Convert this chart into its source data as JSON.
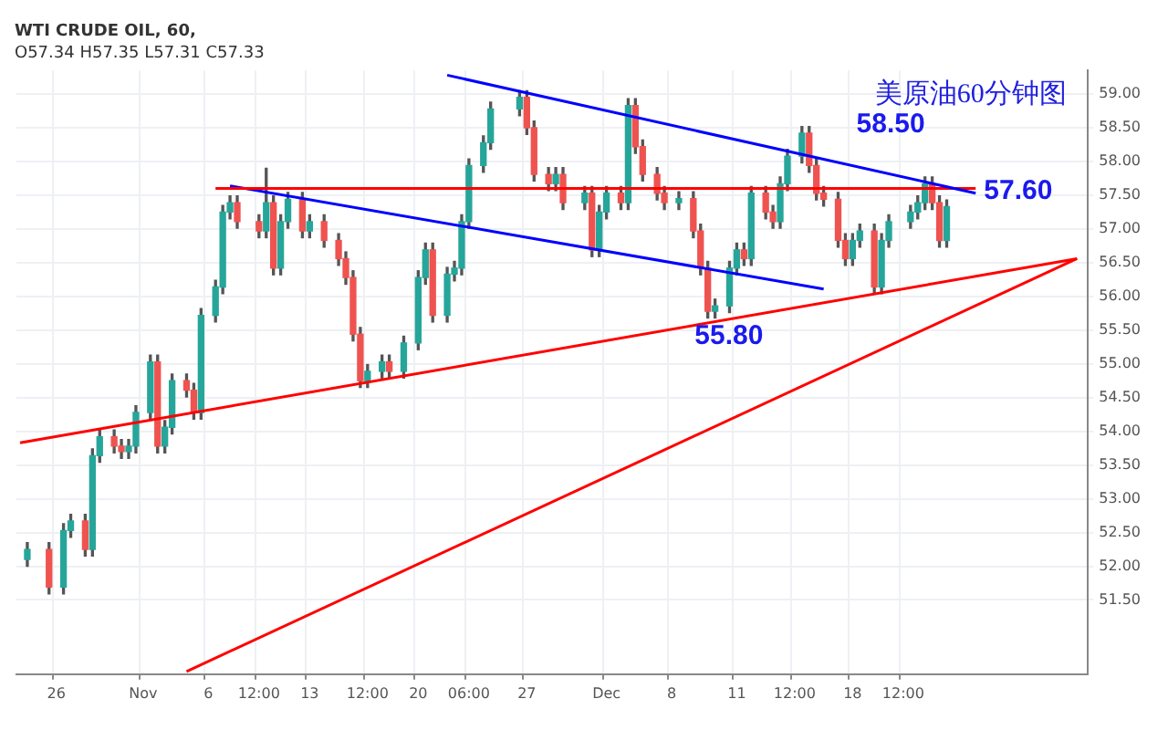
{
  "chart_data": {
    "type": "candlestick",
    "title": "WTI CRUDE OIL, 60,",
    "subtitle": "O57.34 H57.35 L57.31 C57.33",
    "categories": [
      null,
      null,
      null,
      null,
      null,
      "26",
      null,
      null,
      null,
      null,
      null,
      null,
      null,
      null,
      null,
      null,
      null,
      "Nov",
      null,
      null,
      null,
      null,
      null,
      null,
      null,
      null,
      "6",
      null,
      null,
      null,
      null,
      null,
      null,
      "12:00",
      null,
      null,
      null,
      null,
      null,
      null,
      "13",
      null,
      null,
      null,
      null,
      null,
      null,
      null,
      "12:00",
      null,
      null,
      null,
      null,
      null,
      null,
      "20",
      null,
      null,
      null,
      null,
      null,
      null,
      "06:00",
      null,
      null,
      null,
      null,
      null,
      null,
      null,
      "27",
      null,
      null,
      null,
      null,
      null,
      null,
      null,
      null,
      null,
      null,
      "Dec",
      null,
      null,
      null,
      null,
      null,
      null,
      null,
      null,
      "8",
      null,
      null,
      null,
      null,
      null,
      null,
      null,
      null,
      "11",
      null,
      null,
      null,
      null,
      null,
      null,
      null,
      "12:00",
      null,
      null,
      null,
      null,
      null,
      null,
      null,
      "18",
      null,
      null,
      null,
      null,
      null,
      null,
      "12:00",
      null,
      null,
      null,
      null,
      null,
      null,
      null,
      null,
      null,
      null,
      null,
      null,
      null,
      null,
      null,
      null,
      null,
      null,
      null,
      null,
      null,
      null,
      null,
      null,
      null
    ],
    "ohlc": [
      null,
      [
        52.1,
        52.35,
        52.0,
        52.25
      ],
      null,
      null,
      [
        52.25,
        52.35,
        51.59,
        51.69
      ],
      null,
      [
        51.69,
        52.63,
        51.59,
        52.53
      ],
      [
        52.53,
        52.77,
        52.43,
        52.67
      ],
      null,
      [
        52.67,
        52.77,
        52.15,
        52.25
      ],
      [
        52.25,
        53.74,
        52.15,
        53.64
      ],
      [
        53.64,
        54.02,
        53.54,
        53.92
      ],
      null,
      [
        53.92,
        54.02,
        53.68,
        53.78
      ],
      [
        53.78,
        53.88,
        53.6,
        53.7
      ],
      [
        53.7,
        53.88,
        53.6,
        53.78
      ],
      [
        53.78,
        54.38,
        53.68,
        54.28
      ],
      null,
      [
        54.28,
        55.13,
        54.18,
        55.03
      ],
      [
        55.03,
        55.13,
        53.68,
        53.78
      ],
      [
        53.78,
        54.16,
        53.68,
        54.06
      ],
      [
        54.06,
        54.85,
        53.96,
        54.75
      ],
      null,
      [
        54.75,
        54.85,
        54.51,
        54.61
      ],
      [
        54.61,
        54.71,
        54.18,
        54.28
      ],
      [
        54.28,
        55.82,
        54.18,
        55.72
      ],
      null,
      [
        55.72,
        56.24,
        55.62,
        56.14
      ],
      [
        56.14,
        57.35,
        56.04,
        57.25
      ],
      [
        57.25,
        57.49,
        57.15,
        57.39
      ],
      [
        57.39,
        57.49,
        57.01,
        57.11
      ],
      null,
      null,
      [
        57.11,
        57.21,
        56.87,
        56.97
      ],
      [
        56.97,
        57.9,
        56.87,
        57.39
      ],
      [
        57.39,
        57.49,
        56.32,
        56.42
      ],
      [
        56.42,
        57.21,
        56.32,
        57.11
      ],
      [
        57.11,
        57.54,
        57.01,
        57.44
      ],
      null,
      [
        57.44,
        57.54,
        56.87,
        56.97
      ],
      [
        56.97,
        57.21,
        56.87,
        57.11
      ],
      null,
      [
        57.11,
        57.21,
        56.73,
        56.83
      ],
      null,
      [
        56.83,
        56.93,
        56.46,
        56.56
      ],
      [
        56.56,
        56.66,
        56.18,
        56.28
      ],
      [
        56.28,
        56.38,
        55.34,
        55.44
      ],
      [
        55.44,
        55.54,
        54.65,
        54.75
      ],
      [
        54.75,
        54.99,
        54.65,
        54.89
      ],
      null,
      [
        54.89,
        55.13,
        54.79,
        55.03
      ],
      [
        55.03,
        55.13,
        54.79,
        54.89
      ],
      null,
      [
        54.89,
        55.41,
        54.79,
        55.31
      ],
      null,
      [
        55.31,
        56.38,
        55.21,
        56.28
      ],
      [
        56.28,
        56.79,
        56.18,
        56.69
      ],
      [
        56.69,
        56.79,
        55.62,
        55.72
      ],
      null,
      [
        55.72,
        56.43,
        55.62,
        56.33
      ],
      [
        56.33,
        56.52,
        56.23,
        56.42
      ],
      [
        56.42,
        57.21,
        56.32,
        57.11
      ],
      [
        57.11,
        58.04,
        57.01,
        57.94
      ],
      null,
      [
        57.94,
        58.38,
        57.84,
        58.28
      ],
      [
        58.28,
        58.88,
        58.18,
        58.78
      ],
      null,
      null,
      null,
      [
        58.78,
        59.05,
        58.68,
        58.95
      ],
      [
        58.95,
        59.05,
        58.4,
        58.5
      ],
      [
        58.5,
        58.6,
        57.71,
        57.81
      ],
      null,
      [
        57.81,
        57.91,
        57.57,
        57.67
      ],
      [
        57.67,
        57.91,
        57.57,
        57.81
      ],
      [
        57.81,
        57.91,
        57.29,
        57.39
      ],
      null,
      null,
      [
        57.39,
        57.63,
        57.29,
        57.53
      ],
      [
        57.53,
        57.63,
        56.59,
        56.69
      ],
      [
        56.69,
        57.35,
        56.59,
        57.25
      ],
      [
        57.25,
        57.63,
        57.15,
        57.53
      ],
      null,
      [
        57.53,
        57.63,
        57.29,
        57.39
      ],
      [
        57.39,
        58.93,
        57.29,
        58.83
      ],
      [
        58.83,
        58.93,
        58.12,
        58.22
      ],
      [
        58.22,
        58.32,
        57.71,
        57.81
      ],
      null,
      [
        57.81,
        57.91,
        57.43,
        57.53
      ],
      [
        57.53,
        57.63,
        57.29,
        57.39
      ],
      null,
      [
        57.39,
        57.55,
        57.29,
        57.45
      ],
      null,
      [
        57.45,
        57.55,
        56.87,
        56.97
      ],
      [
        56.97,
        57.07,
        56.32,
        56.42
      ],
      [
        56.42,
        56.52,
        55.68,
        55.78
      ],
      [
        55.78,
        55.96,
        55.68,
        55.86
      ],
      null,
      [
        55.86,
        56.52,
        55.76,
        56.42
      ],
      [
        56.42,
        56.79,
        56.32,
        56.69
      ],
      [
        56.69,
        56.79,
        56.46,
        56.56
      ],
      [
        56.56,
        57.63,
        56.46,
        57.53
      ],
      null,
      [
        57.53,
        57.63,
        57.15,
        57.25
      ],
      [
        57.25,
        57.35,
        57.01,
        57.11
      ],
      [
        57.11,
        57.77,
        57.01,
        57.67
      ],
      [
        57.67,
        58.18,
        57.57,
        58.08
      ],
      null,
      [
        58.08,
        58.52,
        57.98,
        58.42
      ],
      [
        58.42,
        58.52,
        57.84,
        57.94
      ],
      [
        57.94,
        58.04,
        57.43,
        57.53
      ],
      [
        57.53,
        57.63,
        57.34,
        57.44
      ],
      null,
      [
        57.44,
        57.54,
        56.73,
        56.83
      ],
      [
        56.83,
        56.93,
        56.46,
        56.56
      ],
      [
        56.56,
        56.93,
        56.46,
        56.83
      ],
      [
        56.83,
        57.07,
        56.73,
        56.97
      ],
      null,
      [
        56.97,
        57.07,
        56.04,
        56.14
      ],
      [
        56.14,
        56.93,
        56.04,
        56.83
      ],
      [
        56.83,
        57.21,
        56.73,
        57.11
      ],
      null,
      null,
      [
        57.11,
        57.35,
        57.01,
        57.25
      ],
      [
        57.25,
        57.49,
        57.15,
        57.39
      ],
      [
        57.39,
        57.77,
        57.29,
        57.67
      ],
      [
        57.67,
        57.77,
        57.29,
        57.39
      ],
      [
        57.39,
        57.49,
        56.73,
        56.83
      ],
      [
        56.83,
        57.43,
        56.73,
        57.33
      ],
      null,
      null,
      null,
      null,
      null,
      null,
      null,
      null,
      null,
      null,
      null,
      null,
      null,
      null,
      null,
      null,
      null,
      null,
      null
    ],
    "series": [
      {
        "type": "line",
        "color": "#0000ff",
        "values": [
          null,
          null,
          null,
          null,
          null,
          null,
          null,
          null,
          null,
          null,
          null,
          null,
          null,
          null,
          null,
          null,
          null,
          null,
          null,
          null,
          null,
          null,
          null,
          null,
          null,
          null,
          null,
          null,
          null,
          null,
          null,
          null,
          null,
          null,
          null,
          null,
          null,
          null,
          null,
          null,
          null,
          null,
          null,
          null,
          null,
          null,
          null,
          null,
          null,
          null,
          null,
          null,
          null,
          null,
          null,
          null,
          null,
          null,
          null,
          59.28,
          null,
          null,
          null,
          null,
          null,
          null,
          null,
          null,
          null,
          null,
          null,
          null,
          null,
          null,
          null,
          null,
          null,
          null,
          null,
          null,
          null,
          null,
          null,
          null,
          null,
          null,
          null,
          null,
          null,
          null,
          null,
          null,
          null,
          null,
          null,
          null,
          null,
          null,
          null,
          null,
          null,
          null,
          null,
          null,
          null,
          null,
          null,
          null,
          null,
          null,
          null,
          null,
          null,
          null,
          null,
          null,
          null,
          null,
          null,
          null,
          null,
          null,
          null,
          null,
          null,
          null,
          null,
          null,
          null,
          null,
          null,
          null,
          57.53,
          null,
          null,
          null,
          null,
          null,
          null,
          null,
          null,
          null,
          null,
          null,
          null,
          null,
          null,
          null
        ]
      },
      {
        "type": "line",
        "color": "#ff0000",
        "values": [
          null,
          null,
          null,
          null,
          null,
          null,
          null,
          null,
          null,
          null,
          null,
          null,
          null,
          null,
          null,
          null,
          null,
          null,
          null,
          null,
          null,
          null,
          null,
          null,
          null,
          null,
          null,
          57.6,
          null,
          null,
          null,
          null,
          null,
          null,
          null,
          null,
          null,
          null,
          null,
          null,
          null,
          null,
          null,
          null,
          null,
          null,
          null,
          null,
          null,
          null,
          null,
          null,
          null,
          null,
          null,
          null,
          null,
          null,
          null,
          null,
          null,
          null,
          null,
          null,
          null,
          null,
          null,
          null,
          null,
          null,
          null,
          null,
          null,
          null,
          null,
          null,
          null,
          null,
          null,
          null,
          null,
          null,
          null,
          null,
          null,
          null,
          null,
          null,
          null,
          null,
          null,
          null,
          null,
          null,
          null,
          null,
          null,
          null,
          null,
          null,
          null,
          null,
          null,
          null,
          null,
          null,
          null,
          null,
          null,
          null,
          null,
          null,
          null,
          null,
          null,
          null,
          null,
          null,
          null,
          null,
          null,
          null,
          null,
          null,
          null,
          null,
          null,
          null,
          null,
          null,
          null,
          null,
          57.6,
          null,
          null,
          null,
          null,
          null,
          null,
          null,
          null,
          null,
          null,
          null,
          null,
          null,
          null,
          null
        ]
      },
      {
        "type": "line",
        "color": "#0000ff",
        "values": [
          null,
          null,
          null,
          null,
          null,
          null,
          null,
          null,
          null,
          null,
          null,
          null,
          null,
          null,
          null,
          null,
          null,
          null,
          null,
          null,
          null,
          null,
          null,
          null,
          null,
          null,
          null,
          null,
          null,
          57.64,
          null,
          null,
          null,
          null,
          null,
          null,
          null,
          null,
          null,
          null,
          null,
          null,
          null,
          null,
          null,
          null,
          null,
          null,
          null,
          null,
          null,
          null,
          null,
          null,
          null,
          null,
          null,
          null,
          null,
          null,
          null,
          null,
          null,
          null,
          null,
          null,
          null,
          null,
          null,
          null,
          null,
          null,
          null,
          null,
          null,
          null,
          null,
          null,
          null,
          null,
          null,
          null,
          null,
          null,
          null,
          null,
          null,
          null,
          null,
          null,
          null,
          null,
          null,
          null,
          null,
          null,
          null,
          null,
          null,
          null,
          null,
          null,
          null,
          null,
          null,
          null,
          null,
          null,
          null,
          null,
          null,
          56.11,
          null,
          null,
          null,
          null,
          null,
          null,
          null,
          null,
          null,
          null,
          null,
          null,
          null,
          null,
          null,
          null,
          null,
          null,
          null,
          null,
          null,
          null,
          null,
          null,
          null,
          null,
          null,
          null,
          null,
          null,
          null,
          null,
          null,
          null,
          null,
          null
        ]
      },
      {
        "type": "line",
        "color": "#ff0000",
        "values": [
          53.83,
          null,
          null,
          null,
          null,
          null,
          null,
          null,
          null,
          null,
          null,
          null,
          null,
          null,
          null,
          null,
          null,
          null,
          null,
          null,
          null,
          null,
          null,
          null,
          null,
          null,
          null,
          null,
          null,
          null,
          null,
          null,
          null,
          null,
          null,
          null,
          null,
          null,
          null,
          null,
          null,
          null,
          null,
          null,
          null,
          null,
          null,
          null,
          null,
          null,
          null,
          null,
          null,
          null,
          null,
          null,
          null,
          null,
          null,
          null,
          null,
          null,
          null,
          null,
          null,
          null,
          null,
          null,
          null,
          null,
          null,
          null,
          null,
          null,
          null,
          null,
          null,
          null,
          null,
          null,
          null,
          null,
          null,
          null,
          null,
          null,
          null,
          null,
          null,
          null,
          null,
          null,
          null,
          null,
          null,
          null,
          null,
          null,
          null,
          null,
          null,
          null,
          null,
          null,
          null,
          null,
          null,
          null,
          null,
          null,
          null,
          null,
          null,
          null,
          null,
          null,
          null,
          null,
          null,
          null,
          null,
          null,
          null,
          null,
          null,
          null,
          null,
          null,
          null,
          null,
          null,
          null,
          null,
          null,
          null,
          null,
          null,
          null,
          null,
          null,
          null,
          null,
          null,
          null,
          null,
          null,
          56.56,
          null
        ]
      },
      {
        "type": "line",
        "color": "#ff0000",
        "values": [
          null,
          null,
          null,
          null,
          null,
          null,
          null,
          null,
          null,
          null,
          null,
          null,
          null,
          null,
          null,
          null,
          null,
          null,
          null,
          null,
          null,
          null,
          null,
          50.44,
          null,
          null,
          null,
          null,
          null,
          null,
          null,
          null,
          null,
          null,
          null,
          null,
          null,
          null,
          null,
          null,
          null,
          null,
          null,
          null,
          null,
          null,
          null,
          null,
          null,
          null,
          null,
          null,
          null,
          null,
          null,
          null,
          null,
          null,
          null,
          null,
          null,
          null,
          null,
          null,
          null,
          null,
          null,
          null,
          null,
          null,
          null,
          null,
          null,
          null,
          null,
          null,
          null,
          null,
          null,
          null,
          null,
          null,
          null,
          null,
          null,
          null,
          null,
          null,
          null,
          null,
          null,
          null,
          null,
          null,
          null,
          null,
          null,
          null,
          null,
          null,
          null,
          null,
          null,
          null,
          null,
          null,
          null,
          null,
          null,
          null,
          null,
          null,
          null,
          null,
          null,
          null,
          null,
          null,
          null,
          null,
          null,
          null,
          null,
          null,
          null,
          null,
          null,
          null,
          null,
          null,
          null,
          null,
          null,
          null,
          null,
          null,
          null,
          null,
          null,
          null,
          null,
          null,
          null,
          null,
          null,
          null,
          56.56,
          null
        ]
      }
    ],
    "annotations": [
      "美原油60分钟图",
      "58.50",
      "57.60",
      "55.80"
    ],
    "ylim": [
      50.4,
      59.35
    ],
    "yticks": [
      {
        "value": 51.5,
        "label": "51.50"
      },
      {
        "value": 52,
        "label": "52.00"
      },
      {
        "value": 52.5,
        "label": "52.50"
      },
      {
        "value": 53,
        "label": "53.00"
      },
      {
        "value": 53.5,
        "label": "53.50"
      },
      {
        "value": 54,
        "label": "54.00"
      },
      {
        "value": 54.5,
        "label": "54.50"
      },
      {
        "value": 55,
        "label": "55.00"
      },
      {
        "value": 55.5,
        "label": "55.50"
      },
      {
        "value": 56,
        "label": "56.00"
      },
      {
        "value": 56.5,
        "label": "56.50"
      },
      {
        "value": 57,
        "label": "57.00"
      },
      {
        "value": 57.5,
        "label": "57.50"
      },
      {
        "value": 58,
        "label": "58.00"
      },
      {
        "value": 58.5,
        "label": "58.50"
      },
      {
        "value": 59,
        "label": "59.00"
      }
    ],
    "grid": true,
    "legend": false
  }
}
